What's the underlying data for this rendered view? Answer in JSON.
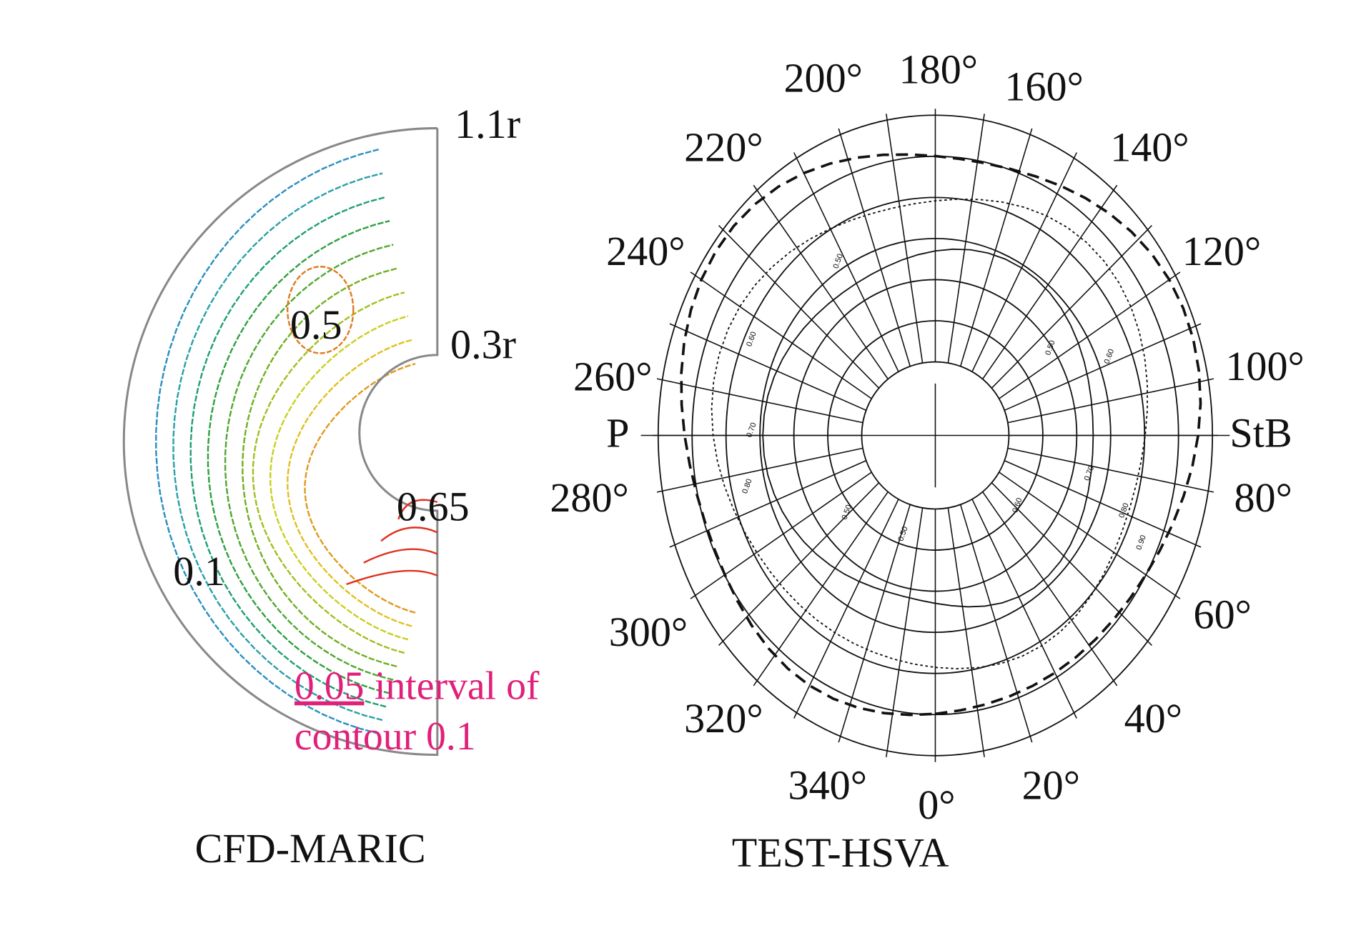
{
  "left_panel": {
    "title": "CFD-MARIC",
    "radius_labels": [
      "1.1r",
      "0.3r"
    ],
    "contour_labels": [
      "0.5",
      "0.65",
      "0.1"
    ],
    "note": {
      "underlined": "0.05",
      "text": "interval of",
      "line2": "contour 0.1"
    }
  },
  "right_panel": {
    "title": "TEST-HSVA",
    "angle_labels": [
      "180°",
      "200°",
      "160°",
      "220°",
      "140°",
      "240°",
      "120°",
      "260°",
      "100°",
      "280°",
      "80°",
      "300°",
      "60°",
      "320°",
      "40°",
      "340°",
      "0°",
      "20°"
    ],
    "side_labels": [
      "P",
      "StB"
    ],
    "contour_labels": [
      "0.50",
      "0.60",
      "0.70",
      "0.80",
      "0.50",
      "0.60",
      "0.70",
      "0.60",
      "0.80",
      "0.90",
      "0.50",
      "0.50"
    ]
  }
}
